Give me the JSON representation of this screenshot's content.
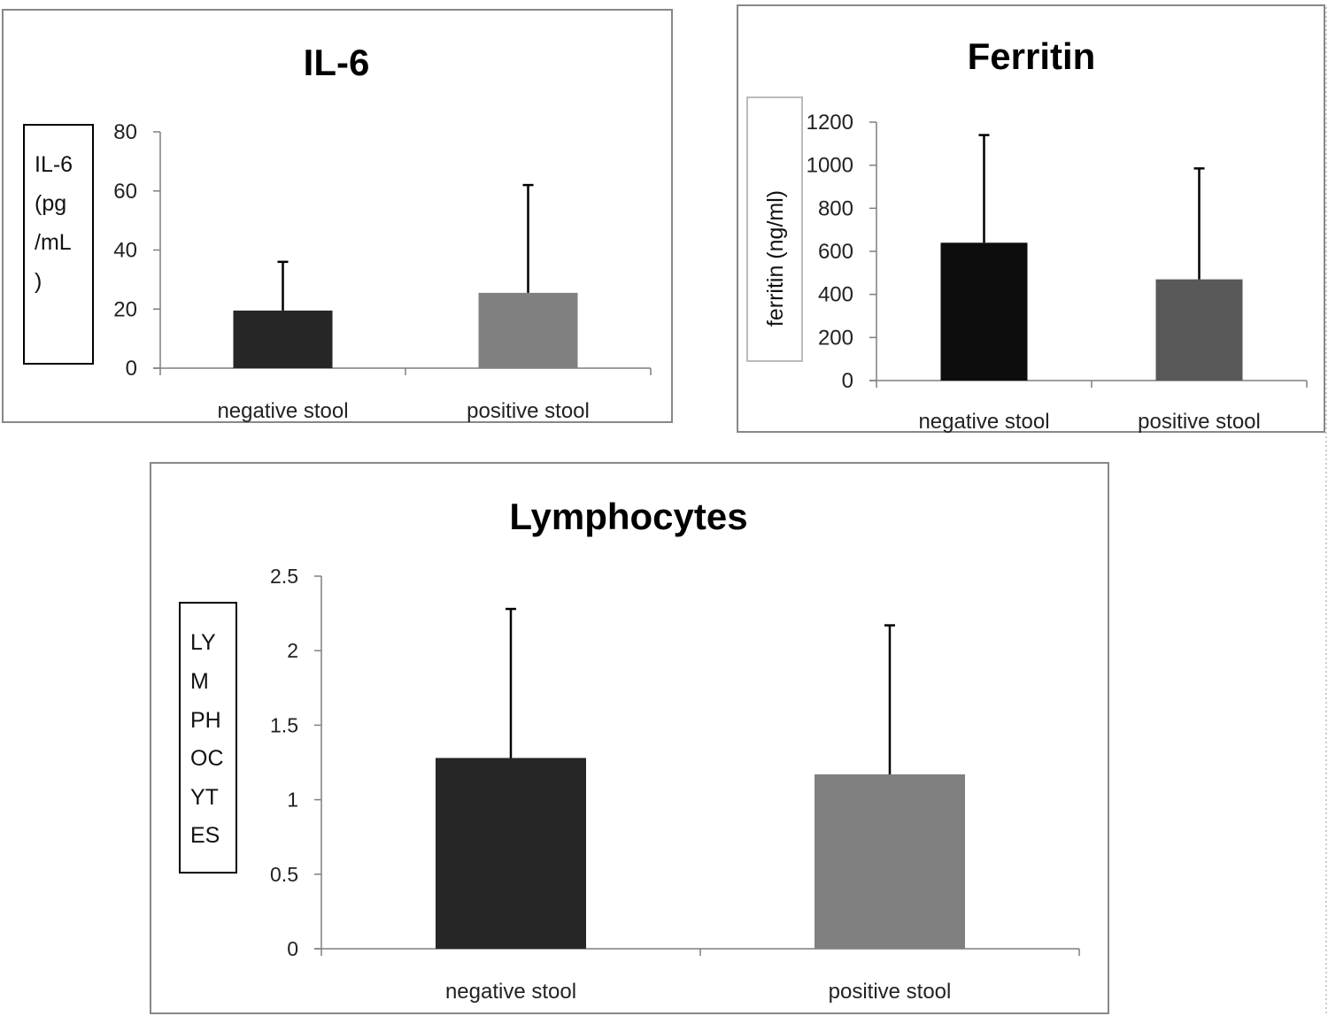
{
  "chart_data": [
    {
      "type": "bar",
      "title": "IL-6",
      "ylabel_lines": [
        "IL-6",
        "(pg",
        "/mL",
        ")"
      ],
      "xlabel": "",
      "categories": [
        "negative stool",
        "positive stool"
      ],
      "values": [
        19.5,
        25.5
      ],
      "error_plus": [
        16.5,
        36.5
      ],
      "bar_colors": [
        "#262626",
        "#808080"
      ],
      "ylim": [
        0,
        80
      ],
      "yticks": [
        0,
        20,
        40,
        60,
        80
      ],
      "ytick_labels": [
        "0",
        "20",
        "40",
        "60",
        "80"
      ],
      "grid": false
    },
    {
      "type": "bar",
      "title": "Ferritin",
      "ylabel": "ferritin (ng/ml)",
      "xlabel": "",
      "categories": [
        "negative stool",
        "positive stool"
      ],
      "values": [
        640,
        470
      ],
      "error_plus": [
        500,
        515
      ],
      "bar_colors": [
        "#0d0d0d",
        "#595959"
      ],
      "ylim": [
        0,
        1200
      ],
      "yticks": [
        0,
        200,
        400,
        600,
        800,
        1000,
        1200
      ],
      "ytick_labels": [
        "0",
        "200",
        "400",
        "600",
        "800",
        "1000",
        "1200"
      ],
      "grid": false
    },
    {
      "type": "bar",
      "title": "Lymphocytes",
      "ylabel_lines": [
        "LY",
        "M",
        "PH",
        "OC",
        "YT",
        "ES"
      ],
      "xlabel": "",
      "categories": [
        "negative stool",
        "positive stool"
      ],
      "values": [
        1.28,
        1.17
      ],
      "error_plus": [
        1.0,
        1.0
      ],
      "bar_colors": [
        "#262626",
        "#808080"
      ],
      "ylim": [
        0,
        2.5
      ],
      "yticks": [
        0,
        0.5,
        1,
        1.5,
        2,
        2.5
      ],
      "ytick_labels": [
        "0",
        "0.5",
        "1",
        "1.5",
        "2",
        "2.5"
      ],
      "grid": false
    }
  ]
}
